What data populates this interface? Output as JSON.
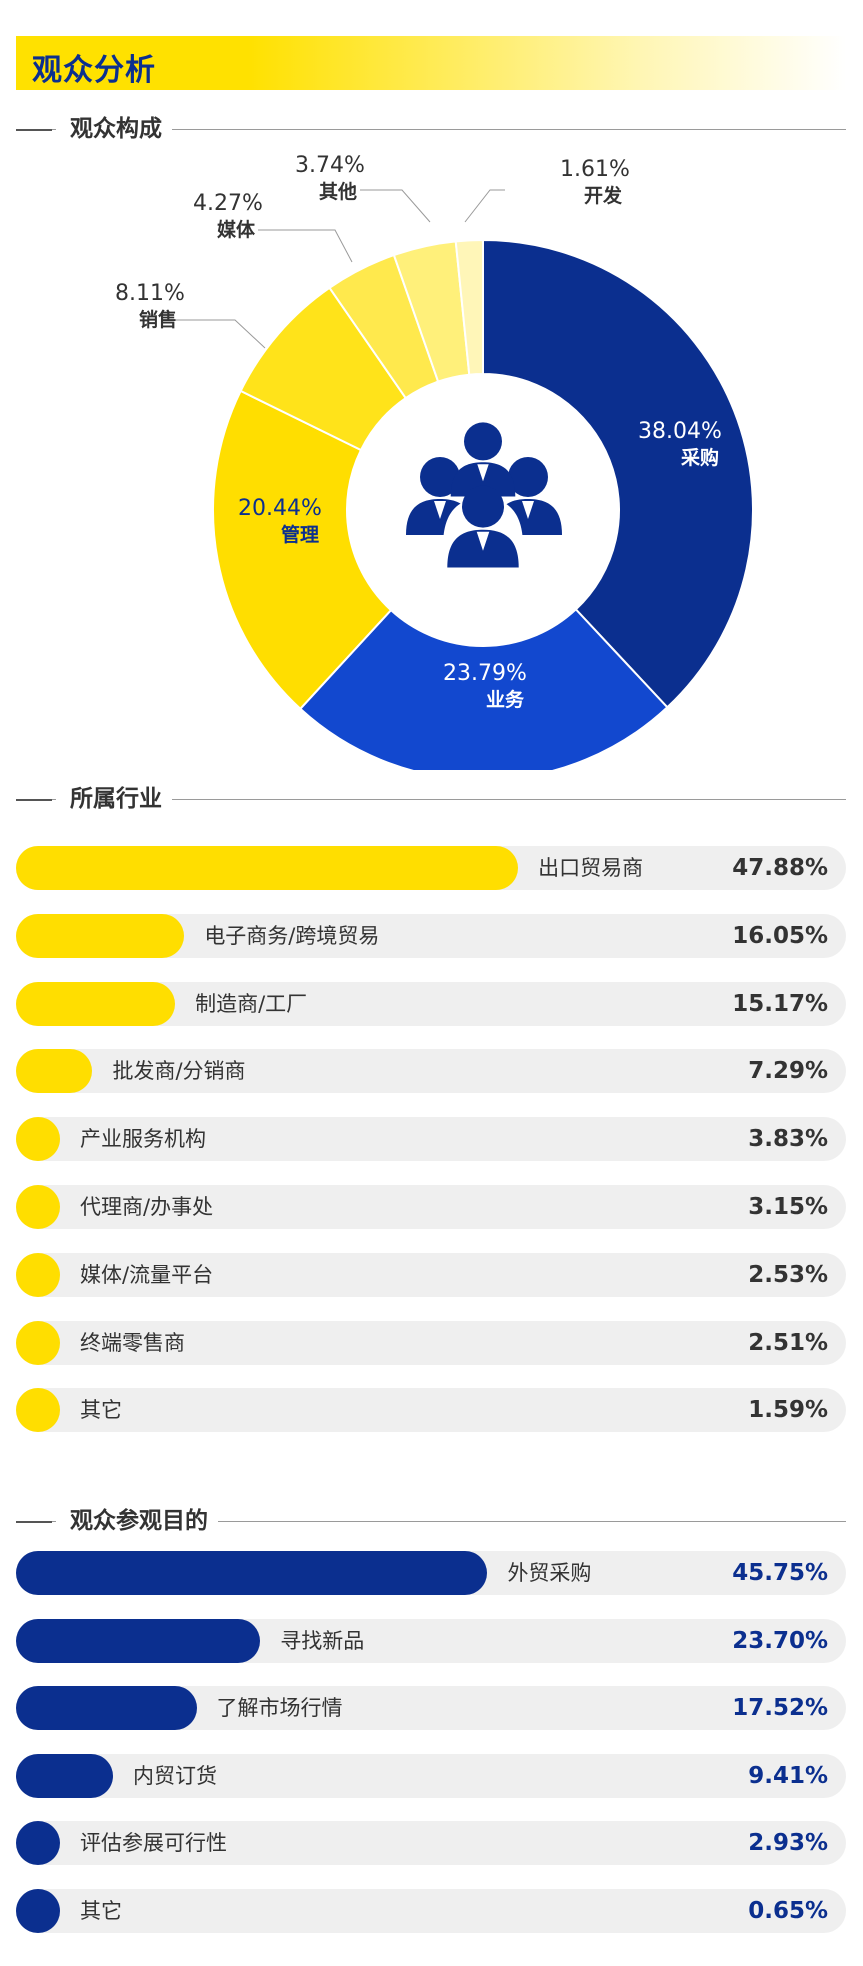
{
  "page": {
    "title": "观众分析"
  },
  "sections": {
    "composition": "观众构成",
    "industry": "所属行业",
    "purpose": "观众参观目的"
  },
  "colors": {
    "brand_blue": "#0b2f8f",
    "accent_blue": "#1248cf",
    "brand_yellow": "#ffde00",
    "light_yellow": "#ffeb4d",
    "pale_yellow": "#fff07a",
    "cream": "#fff6b8",
    "track_gray": "#efefef"
  },
  "icons": {
    "center": "audience-group-icon"
  },
  "chart_data": [
    {
      "type": "pie",
      "subtype": "donut",
      "title": "观众构成",
      "slices": [
        {
          "label": "采购",
          "value": 38.04,
          "display": "38.04%",
          "color": "#0b2f8f"
        },
        {
          "label": "业务",
          "value": 23.79,
          "display": "23.79%",
          "color": "#1248cf"
        },
        {
          "label": "管理",
          "value": 20.44,
          "display": "20.44%",
          "color": "#ffde00"
        },
        {
          "label": "销售",
          "value": 8.11,
          "display": "8.11%",
          "color": "#ffe31a"
        },
        {
          "label": "媒体",
          "value": 4.27,
          "display": "4.27%",
          "color": "#ffe94d"
        },
        {
          "label": "其他",
          "value": 3.74,
          "display": "3.74%",
          "color": "#fff07a"
        },
        {
          "label": "开发",
          "value": 1.61,
          "display": "1.61%",
          "color": "#fff6b8"
        }
      ]
    },
    {
      "type": "bar",
      "orientation": "horizontal",
      "title": "所属行业",
      "categories": [
        "出口贸易商",
        "电子商务/跨境贸易",
        "制造商/工厂",
        "批发商/分销商",
        "产业服务机构",
        "代理商/办事处",
        "媒体/流量平台",
        "终端零售商",
        "其它"
      ],
      "values": [
        47.88,
        16.05,
        15.17,
        7.29,
        3.83,
        3.15,
        2.53,
        2.51,
        1.59
      ],
      "labels": [
        "47.88%",
        "16.05%",
        "15.17%",
        "7.29%",
        "3.83%",
        "3.15%",
        "2.53%",
        "2.51%",
        "1.59%"
      ]
    },
    {
      "type": "bar",
      "orientation": "horizontal",
      "title": "观众参观目的",
      "categories": [
        "外贸采购",
        "寻找新品",
        "了解市场行情",
        "内贸订货",
        "评估参展可行性",
        "其它"
      ],
      "values": [
        45.75,
        23.7,
        17.52,
        9.41,
        2.93,
        0.65
      ],
      "labels": [
        "45.75%",
        "23.70%",
        "17.52%",
        "9.41%",
        "2.93%",
        "0.65%"
      ]
    }
  ]
}
